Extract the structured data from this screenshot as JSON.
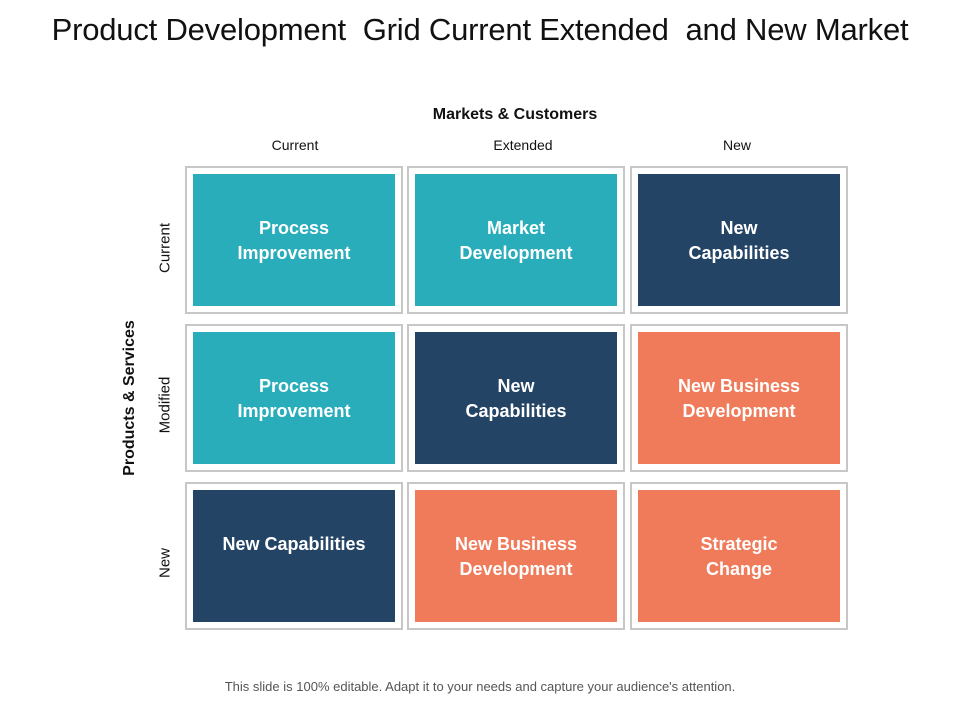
{
  "title": "Product Development  Grid Current Extended  and New Market",
  "columns_axis": {
    "title": "Markets & Customers",
    "headers": [
      "Current",
      "Extended",
      "New"
    ]
  },
  "rows_axis": {
    "title": "Products & Services",
    "headers": [
      "Current",
      "Modified",
      "New"
    ]
  },
  "colors": {
    "teal": "#2aadbb",
    "navy": "#244466",
    "coral": "#ef7b5a"
  },
  "grid": [
    [
      {
        "label": "Process\nImprovement",
        "color": "teal"
      },
      {
        "label": "Market\nDevelopment",
        "color": "teal"
      },
      {
        "label": "New\nCapabilities",
        "color": "navy"
      }
    ],
    [
      {
        "label": "Process\nImprovement",
        "color": "teal"
      },
      {
        "label": "New\nCapabilities",
        "color": "navy"
      },
      {
        "label": "New Business\nDevelopment",
        "color": "coral"
      }
    ],
    [
      {
        "label": "New Capabilities",
        "color": "navy"
      },
      {
        "label": "New Business\nDevelopment",
        "color": "coral"
      },
      {
        "label": "Strategic\nChange",
        "color": "coral"
      }
    ]
  ],
  "footer": "This slide is 100% editable. Adapt it to your needs and capture your audience's attention."
}
